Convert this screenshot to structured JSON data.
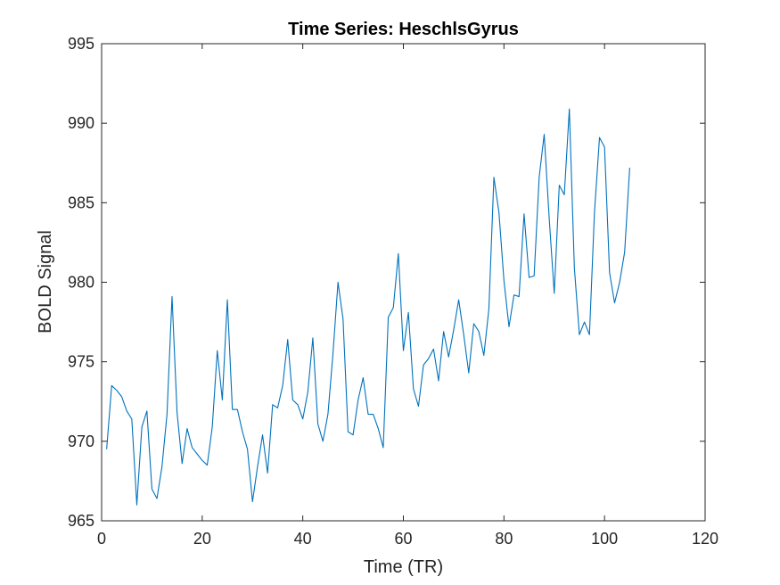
{
  "chart_data": {
    "type": "line",
    "title": "Time Series: HeschlsGyrus",
    "xlabel": "Time (TR)",
    "ylabel": "BOLD Signal",
    "xlim": [
      0,
      120
    ],
    "ylim": [
      965,
      995
    ],
    "xticks": [
      0,
      20,
      40,
      60,
      80,
      100,
      120
    ],
    "yticks": [
      965,
      970,
      975,
      980,
      985,
      990,
      995
    ],
    "xtick_labels": [
      "0",
      "20",
      "40",
      "60",
      "80",
      "100",
      "120"
    ],
    "ytick_labels": [
      "965",
      "970",
      "975",
      "980",
      "985",
      "990",
      "995"
    ],
    "grid": false,
    "line_color": "#0072BD",
    "series": [
      {
        "x": [
          1,
          2,
          3,
          4,
          5,
          6,
          7,
          8,
          9,
          10,
          11,
          12,
          13,
          14,
          15,
          16,
          17,
          18,
          19,
          20,
          21,
          22,
          23,
          24,
          25,
          26,
          27,
          28,
          29,
          30,
          31,
          32,
          33,
          34,
          35,
          36,
          37,
          38,
          39,
          40,
          41,
          42,
          43,
          44,
          45,
          46,
          47,
          48,
          49,
          50,
          51,
          52,
          53,
          54,
          55,
          56,
          57,
          58,
          59,
          60,
          61,
          62,
          63,
          64,
          65,
          66,
          67,
          68,
          69,
          70,
          71,
          72,
          73,
          74,
          75,
          76,
          77,
          78,
          79,
          80,
          81,
          82,
          83,
          84,
          85,
          86,
          87,
          88,
          89,
          90,
          91,
          92,
          93,
          94,
          95,
          96,
          97,
          98,
          99,
          100,
          101,
          102,
          103,
          104,
          105
        ],
        "values": [
          969.5,
          973.5,
          973.2,
          972.8,
          971.9,
          971.4,
          966.0,
          970.9,
          971.9,
          967.0,
          966.4,
          968.4,
          971.7,
          979.1,
          971.8,
          968.6,
          970.8,
          969.6,
          969.2,
          968.8,
          968.5,
          970.9,
          975.7,
          972.6,
          978.9,
          972.0,
          972.0,
          970.6,
          969.5,
          966.2,
          968.4,
          970.4,
          968.0,
          972.3,
          972.1,
          973.5,
          976.4,
          972.6,
          972.3,
          971.4,
          973.1,
          976.5,
          971.1,
          970.0,
          971.7,
          975.5,
          980.0,
          977.7,
          970.6,
          970.4,
          972.6,
          974.0,
          971.7,
          971.7,
          970.8,
          969.6,
          977.8,
          978.4,
          981.8,
          975.7,
          978.1,
          973.3,
          972.2,
          974.8,
          975.2,
          975.8,
          973.8,
          976.9,
          975.3,
          977.0,
          978.9,
          976.7,
          974.3,
          977.4,
          976.9,
          975.4,
          978.3,
          986.6,
          984.4,
          980.1,
          977.2,
          979.2,
          979.1,
          984.3,
          980.3,
          980.4,
          986.6,
          989.3,
          984.0,
          979.3,
          986.1,
          985.5,
          990.9,
          980.9,
          976.7,
          977.5,
          976.7,
          984.4,
          989.1,
          988.5,
          980.6,
          978.7,
          980.0,
          981.9,
          987.2
        ]
      }
    ]
  }
}
